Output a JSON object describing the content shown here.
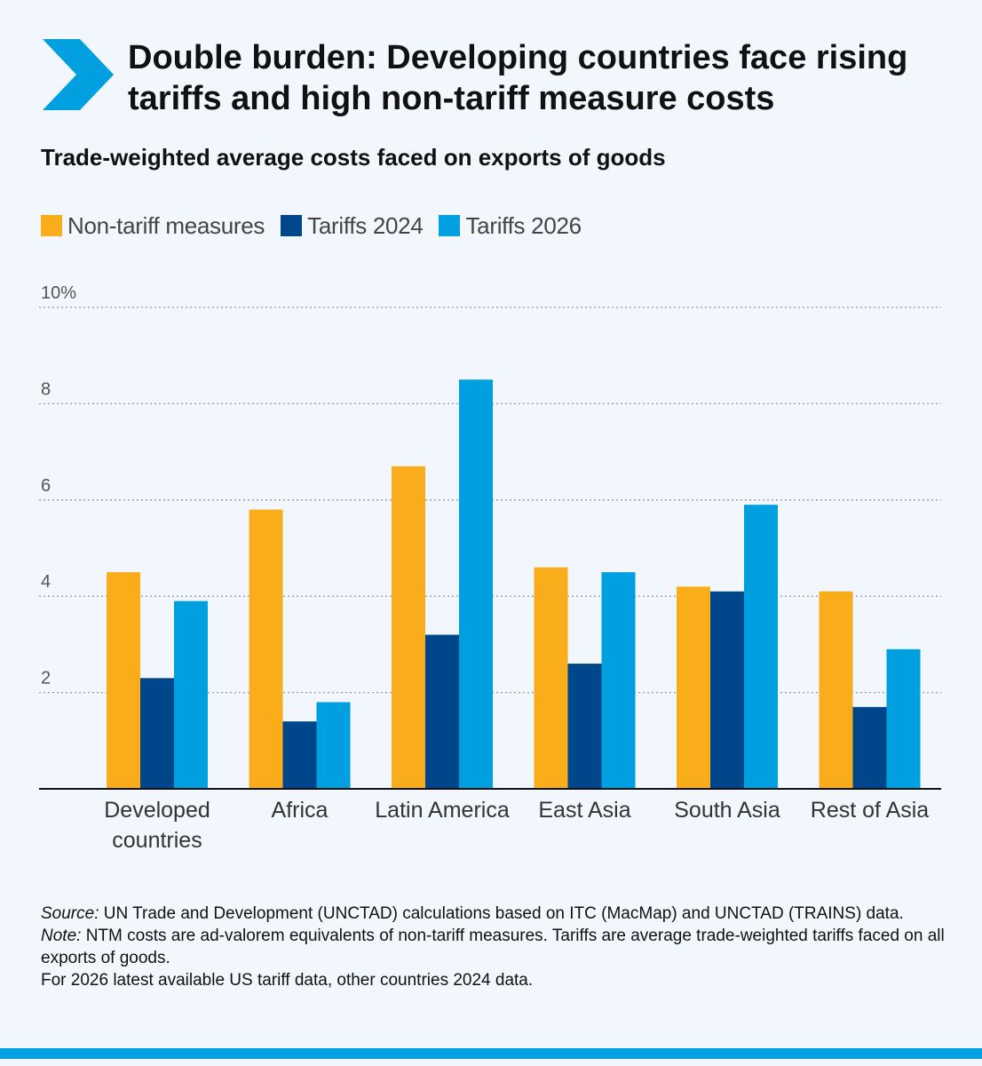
{
  "header": {
    "title": "Double burden: Developing countries face rising tariffs and high non-tariff measure costs",
    "subtitle": "Trade-weighted average costs faced on exports of goods"
  },
  "icon": "chevron-right-icon",
  "colors": {
    "ntm": "#f9ad1a",
    "tariffs2024": "#00468b",
    "tariffs2026": "#009fe0",
    "accent": "#009fe0",
    "background": "#f1f7fc"
  },
  "notes": {
    "source_label": "Source:",
    "source_text": " UN Trade and Development (UNCTAD) calculations based on ITC (MacMap) and UNCTAD (TRAINS) data.",
    "note_label": "Note:",
    "note_text": " NTM costs are ad-valorem equivalents of non-tariff measures. Tariffs are average trade-weighted tariffs faced on all exports of goods.",
    "extra": "For 2026 latest available US tariff data, other countries 2024 data."
  },
  "chart_data": {
    "type": "bar",
    "categories": [
      "Developed countries",
      "Africa",
      "Latin America",
      "East Asia",
      "South Asia",
      "Rest of Asia"
    ],
    "series": [
      {
        "name": "Non-tariff measures",
        "values": [
          4.5,
          5.8,
          6.7,
          4.6,
          4.2,
          4.1
        ]
      },
      {
        "name": "Tariffs 2024",
        "values": [
          2.3,
          1.4,
          3.2,
          2.6,
          4.1,
          1.7
        ]
      },
      {
        "name": "Tariffs 2026",
        "values": [
          3.9,
          1.8,
          8.5,
          4.5,
          5.9,
          2.9
        ]
      }
    ],
    "ylim": [
      0,
      10
    ],
    "yticks": [
      2,
      4,
      6,
      8,
      10
    ],
    "ytick_labels": [
      "2",
      "4",
      "6",
      "8",
      "10%"
    ],
    "grid": true,
    "legend_position": "top-left"
  }
}
